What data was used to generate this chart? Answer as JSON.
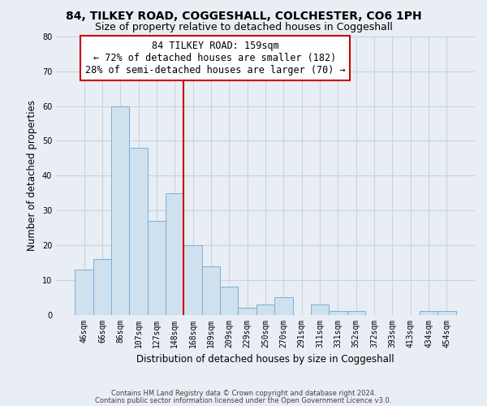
{
  "title": "84, TILKEY ROAD, COGGESHALL, COLCHESTER, CO6 1PH",
  "subtitle": "Size of property relative to detached houses in Coggeshall",
  "xlabel": "Distribution of detached houses by size in Coggeshall",
  "ylabel": "Number of detached properties",
  "bar_labels": [
    "46sqm",
    "66sqm",
    "86sqm",
    "107sqm",
    "127sqm",
    "148sqm",
    "168sqm",
    "189sqm",
    "209sqm",
    "229sqm",
    "250sqm",
    "270sqm",
    "291sqm",
    "311sqm",
    "331sqm",
    "352sqm",
    "372sqm",
    "393sqm",
    "413sqm",
    "434sqm",
    "454sqm"
  ],
  "bar_values": [
    13,
    16,
    60,
    48,
    27,
    35,
    20,
    14,
    8,
    2,
    3,
    5,
    0,
    3,
    1,
    1,
    0,
    0,
    0,
    1,
    1
  ],
  "bar_color": "#cfe0ef",
  "bar_edge_color": "#7ab0d4",
  "vline_x": 5.5,
  "vline_color": "#cc0000",
  "annotation_title": "84 TILKEY ROAD: 159sqm",
  "annotation_line1": "← 72% of detached houses are smaller (182)",
  "annotation_line2": "28% of semi-detached houses are larger (70) →",
  "annotation_box_color": "#ffffff",
  "annotation_box_edge": "#cc0000",
  "ylim": [
    0,
    80
  ],
  "yticks": [
    0,
    10,
    20,
    30,
    40,
    50,
    60,
    70,
    80
  ],
  "footnote1": "Contains HM Land Registry data © Crown copyright and database right 2024.",
  "footnote2": "Contains public sector information licensed under the Open Government Licence v3.0.",
  "background_color": "#e8eef4",
  "grid_color": "#c8d4e0",
  "title_fontsize": 10,
  "subtitle_fontsize": 9,
  "axis_label_fontsize": 8.5,
  "tick_fontsize": 7,
  "annotation_fontsize": 8.5,
  "footnote_fontsize": 6
}
